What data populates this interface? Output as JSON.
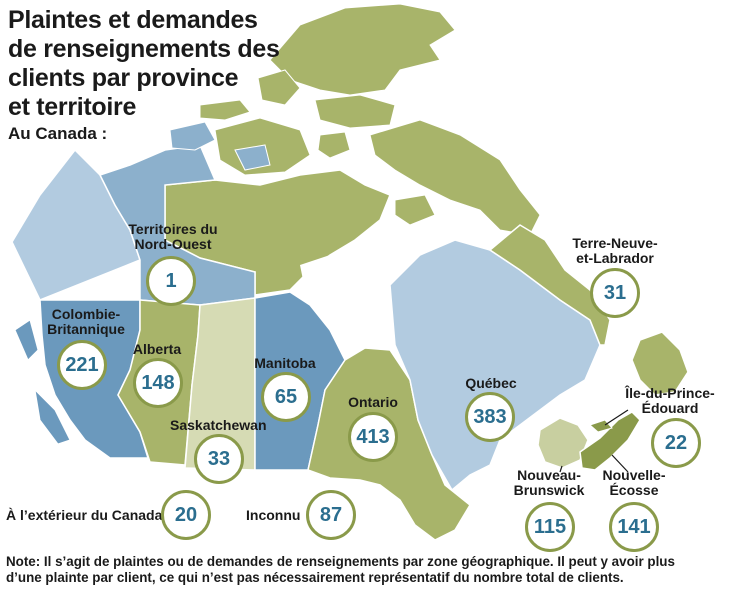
{
  "title_lines": [
    "Plaintes et demandes",
    "de renseignements des",
    "clients par province",
    "et territoire"
  ],
  "subtitle": "Au Canada :",
  "regions": {
    "nwt": {
      "name_lines": [
        "Territoires du",
        "Nord-Ouest"
      ],
      "value": "1"
    },
    "bc": {
      "name_lines": [
        "Colombie-",
        "Britannique"
      ],
      "value": "221"
    },
    "ab": {
      "name": "Alberta",
      "value": "148"
    },
    "sk": {
      "name": "Saskatchewan",
      "value": "33"
    },
    "mb": {
      "name": "Manitoba",
      "value": "65"
    },
    "on": {
      "name": "Ontario",
      "value": "413"
    },
    "qc": {
      "name": "Québec",
      "value": "383"
    },
    "nl": {
      "name_lines": [
        "Terre-Neuve-",
        "et-Labrador"
      ],
      "value": "31"
    },
    "pe": {
      "name_lines": [
        "Île-du-Prince-",
        "Édouard"
      ],
      "value": "22"
    },
    "nb": {
      "name_lines": [
        "Nouveau-",
        "Brunswick"
      ],
      "value": "115"
    },
    "ns": {
      "name_lines": [
        "Nouvelle-",
        "Écosse"
      ],
      "value": "141"
    },
    "outside": {
      "name": "À l’extérieur du Canada",
      "value": "20"
    },
    "unknown": {
      "name": "Inconnu",
      "value": "87"
    }
  },
  "note_lines": [
    "Note: Il s’agit de plaintes ou de demandes de renseignements par zone géographique. Il peut y avoir plus",
    "d’une plainte par client, ce qui n’est pas nécessairement représentatif du nombre total de clients."
  ],
  "colors": {
    "green": "#a8b46a",
    "light_green": "#c8cfa0",
    "pale_green": "#d6dbb4",
    "blue": "#8cb0cc",
    "light_blue": "#b2cbe0",
    "dark_blue": "#6b99bd",
    "circle_border": "#8a9a4a",
    "number_text": "#2b6e8f"
  }
}
